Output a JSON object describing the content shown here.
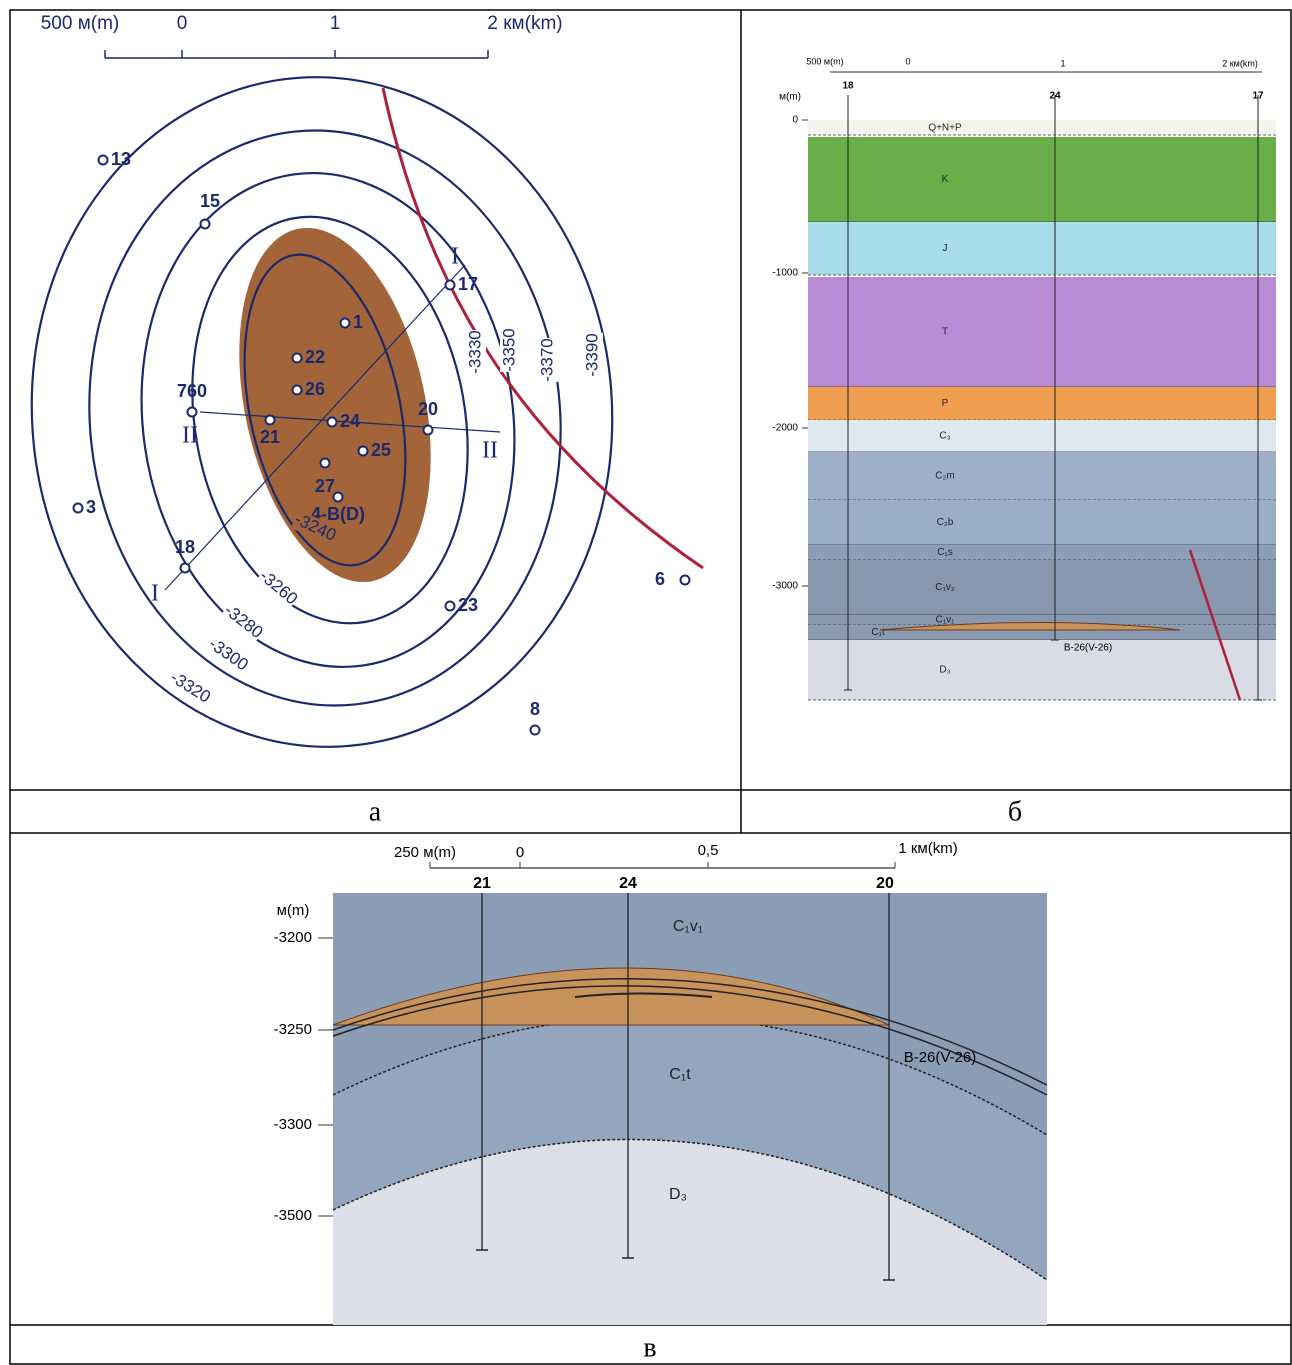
{
  "panel_a": {
    "caption": "а",
    "scale": [
      "500 м(m)",
      "0",
      "1",
      "2 км(km)"
    ],
    "wells": [
      "13",
      "15",
      "17",
      "1",
      "22",
      "26",
      "760",
      "21",
      "24",
      "20",
      "25",
      "27",
      "4-B(D)",
      "3",
      "18",
      "6",
      "23",
      "8"
    ],
    "contours": [
      "-3240",
      "-3260",
      "-3280",
      "-3300",
      "-3320",
      "-3330",
      "-3350",
      "-3370",
      "-3390"
    ],
    "section_marks": [
      "I",
      "I",
      "II",
      "II"
    ]
  },
  "panel_b": {
    "caption": "б",
    "scale": [
      "500 м(m)",
      "0",
      "1",
      "2 км(km)"
    ],
    "wells": [
      "18",
      "24",
      "17"
    ],
    "depth_unit": "м(m)",
    "depth_ticks": [
      "0",
      "-1000",
      "-2000",
      "-3000"
    ],
    "layers": [
      "Q+N+P",
      "K",
      "J",
      "T",
      "P",
      "C₃",
      "C₂m",
      "C₂b",
      "C₁s",
      "C₁v₂",
      "C₁v₁",
      "C₁t",
      "D₃"
    ],
    "horizon": "В-26(V-26)"
  },
  "panel_c": {
    "caption": "в",
    "scale": [
      "250 м(m)",
      "0",
      "0,5",
      "1 км(km)"
    ],
    "wells": [
      "21",
      "24",
      "20"
    ],
    "depth_unit": "м(m)",
    "depth_ticks": [
      "-3200",
      "-3250",
      "-3300",
      "-3500"
    ],
    "layers": [
      "C₁v₁",
      "C₁t",
      "D₃"
    ],
    "horizon": "В-26(V-26)"
  }
}
